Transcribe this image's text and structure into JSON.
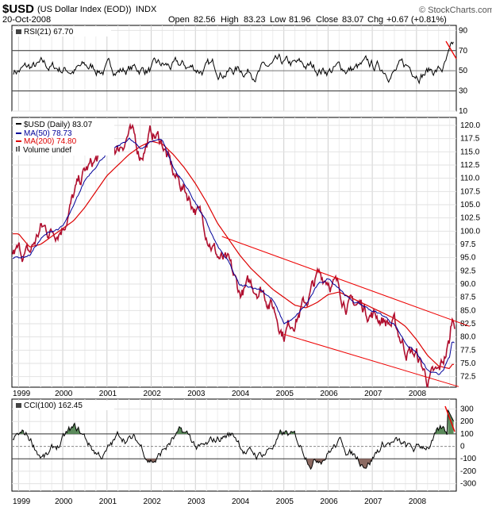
{
  "header": {
    "symbol": "$USD",
    "name": "(US Dollar Index (EOD))",
    "exchange": "INDX",
    "date": "20-Oct-2008",
    "open_label": "Open",
    "open": "82.56",
    "high_label": "High",
    "high": "83.23",
    "low_label": "Low",
    "low": "81.96",
    "close_label": "Close",
    "close": "83.07",
    "chg_label": "Chg",
    "chg": "+0.67 (+0.81%)",
    "brand": "© StockCharts.com"
  },
  "rsi": {
    "label": "RSI(21) 67.70",
    "period": 21,
    "last": 67.7,
    "ticks": [
      "90",
      "70",
      "50",
      "30",
      "10"
    ],
    "ylim": [
      10,
      95
    ],
    "reference_lines": [
      70,
      50,
      30
    ]
  },
  "price": {
    "legend": {
      "price": "$USD (Daily) 83.07",
      "ma50": "MA(50) 78.73",
      "ma200": "MA(200) 74.80",
      "volume": "Volume undef"
    },
    "ticks": [
      "120.0",
      "117.5",
      "115.0",
      "112.5",
      "110.0",
      "107.5",
      "105.0",
      "102.5",
      "100.0",
      "97.5",
      "95.0",
      "92.5",
      "90.0",
      "87.5",
      "85.0",
      "82.5",
      "80.0",
      "77.5",
      "75.0",
      "72.5"
    ],
    "ylim": [
      70.5,
      121.5
    ],
    "colors": {
      "price_down": "#cc0000",
      "price_up": "#000000",
      "ma50": "#000099",
      "ma200": "#dd0000",
      "trendline": "#ee0000"
    }
  },
  "cci": {
    "label": "CCI(100) 162.45",
    "period": 100,
    "last": 162.45,
    "ticks": [
      "300",
      "200",
      "100",
      "0",
      "-100",
      "-200",
      "-300"
    ],
    "ylim": [
      -360,
      380
    ],
    "fill_above": "#5a8a5a",
    "fill_below": "#8c6a62"
  },
  "x_axis": {
    "years": [
      "1999",
      "2000",
      "2001",
      "2002",
      "2003",
      "2004",
      "2005",
      "2006",
      "2007",
      "2008"
    ]
  },
  "chart_data": {
    "type": "line",
    "title": "$USD (US Dollar Index (EOD)) INDX",
    "x": [
      1999.0,
      1999.25,
      1999.5,
      1999.75,
      2000.0,
      2000.25,
      2000.5,
      2000.75,
      2001.0,
      2001.25,
      2001.5,
      2001.75,
      2002.0,
      2002.25,
      2002.5,
      2002.75,
      2003.0,
      2003.25,
      2003.5,
      2003.75,
      2004.0,
      2004.25,
      2004.5,
      2004.75,
      2005.0,
      2005.25,
      2005.5,
      2005.75,
      2006.0,
      2006.25,
      2006.5,
      2006.75,
      2007.0,
      2007.25,
      2007.5,
      2007.75,
      2008.0,
      2008.25,
      2008.5,
      2008.75,
      2008.8
    ],
    "series": [
      {
        "name": "$USD (Daily)",
        "values": [
          96.0,
          95.5,
          100.5,
          100.0,
          101.5,
          106.5,
          111.0,
          113.0,
          116.5,
          115.5,
          119.0,
          114.5,
          118.5,
          117.0,
          110.5,
          108.0,
          104.5,
          100.5,
          95.5,
          93.0,
          88.0,
          89.5,
          89.5,
          86.0,
          81.0,
          84.0,
          86.5,
          91.0,
          91.5,
          89.0,
          86.0,
          86.0,
          84.5,
          83.5,
          82.0,
          78.0,
          76.5,
          72.0,
          72.5,
          79.0,
          83.07
        ]
      },
      {
        "name": "MA(50)",
        "values": [
          95.0,
          95.5,
          98.5,
          100.0,
          100.8,
          104.5,
          109.5,
          112.5,
          115.0,
          115.8,
          117.5,
          115.5,
          117.0,
          117.5,
          112.0,
          109.0,
          105.5,
          101.5,
          97.0,
          94.0,
          89.5,
          89.5,
          89.0,
          87.0,
          82.5,
          83.5,
          86.0,
          89.5,
          91.0,
          89.5,
          87.0,
          86.0,
          85.0,
          84.0,
          82.5,
          79.0,
          77.0,
          73.5,
          72.5,
          76.0,
          78.73
        ]
      },
      {
        "name": "MA(200)",
        "values": [
          99.5,
          97.0,
          97.5,
          99.0,
          100.5,
          102.0,
          104.5,
          107.5,
          110.5,
          112.5,
          114.5,
          116.0,
          117.0,
          116.5,
          114.5,
          112.0,
          109.0,
          105.5,
          101.5,
          98.5,
          95.5,
          93.0,
          91.0,
          89.0,
          87.5,
          86.0,
          85.5,
          86.5,
          88.0,
          88.5,
          87.5,
          86.5,
          85.5,
          84.5,
          83.5,
          82.0,
          79.5,
          76.5,
          74.5,
          74.0,
          74.8
        ]
      }
    ],
    "xlabel": "",
    "ylabel": "",
    "ylim": [
      70.5,
      121.5
    ],
    "trend_channel": {
      "upper": {
        "from": [
          2003.6,
          99.0
        ],
        "to": [
          2009.2,
          82.0
        ]
      },
      "lower": {
        "from": [
          2005.0,
          80.5
        ],
        "to": [
          2009.0,
          70.6
        ]
      }
    }
  }
}
